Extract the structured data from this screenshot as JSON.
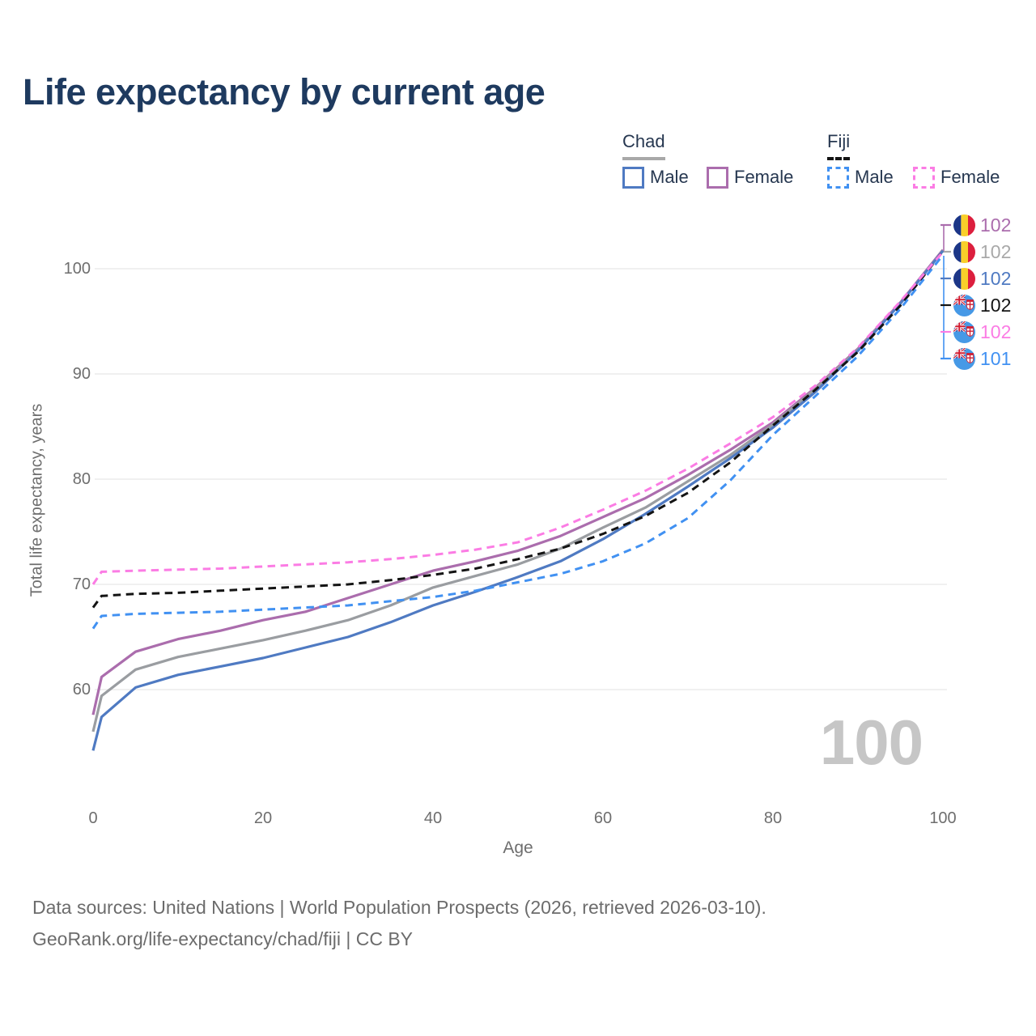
{
  "title": "Life expectancy by current age",
  "watermark": "100",
  "legend": {
    "chad": {
      "name": "Chad",
      "male": "Male",
      "female": "Female"
    },
    "fiji": {
      "name": "Fiji",
      "male": "Male",
      "female": "Female"
    }
  },
  "colors": {
    "chad_male": "#4f7ac2",
    "chad_female": "#ab6dad",
    "chad_all": "#9a9da1",
    "fiji_male": "#4191f2",
    "fiji_female": "#fb7ce4",
    "fiji_all": "#141414",
    "title_text": "#1e3a5f",
    "axis_text": "#6e6e6e",
    "gridline": "#e8e8e8",
    "watermark": "#c6c6c6"
  },
  "chart_data": {
    "type": "line",
    "title": "Life expectancy by current age",
    "xlabel": "Age",
    "ylabel": "Total life expectancy, years",
    "xlim": [
      0,
      100
    ],
    "ylim": [
      53,
      103
    ],
    "x_ticks": [
      0,
      20,
      40,
      60,
      80,
      100
    ],
    "y_ticks": [
      100,
      90,
      80,
      70,
      60
    ],
    "grid": "horizontal-only",
    "legend_position": "top-right",
    "x": [
      0,
      1,
      5,
      10,
      15,
      20,
      25,
      30,
      35,
      40,
      45,
      50,
      55,
      60,
      65,
      70,
      75,
      80,
      85,
      90,
      95,
      100
    ],
    "series": [
      {
        "name": "Chad Female",
        "country": "Chad",
        "sex": "Female",
        "line_style": "solid",
        "color": "#ab6dad",
        "values": [
          57.6,
          61.2,
          63.6,
          64.8,
          65.6,
          66.6,
          67.4,
          68.7,
          70.0,
          71.3,
          72.2,
          73.2,
          74.6,
          76.4,
          78.2,
          80.4,
          82.8,
          85.4,
          88.7,
          92.4,
          96.8,
          101.8
        ],
        "end_label": "102"
      },
      {
        "name": "Chad All",
        "country": "Chad",
        "sex": "Both",
        "line_style": "solid",
        "color": "#9a9da1",
        "values": [
          56.0,
          59.4,
          61.9,
          63.1,
          63.9,
          64.7,
          65.6,
          66.6,
          68.0,
          69.7,
          70.8,
          71.9,
          73.4,
          75.4,
          77.3,
          79.8,
          82.3,
          85.2,
          88.6,
          92.3,
          96.7,
          101.75
        ],
        "end_label": "102"
      },
      {
        "name": "Chad Male",
        "country": "Chad",
        "sex": "Male",
        "line_style": "solid",
        "color": "#4f7ac2",
        "values": [
          54.2,
          57.4,
          60.2,
          61.4,
          62.2,
          63.0,
          64.0,
          65.0,
          66.4,
          68.0,
          69.3,
          70.7,
          72.2,
          74.3,
          76.7,
          79.3,
          82.0,
          84.9,
          88.3,
          92.2,
          96.7,
          101.7
        ],
        "end_label": "102"
      },
      {
        "name": "Fiji All",
        "country": "Fiji",
        "sex": "Both",
        "line_style": "dashed",
        "color": "#141414",
        "values": [
          67.8,
          68.9,
          69.1,
          69.2,
          69.4,
          69.6,
          69.8,
          70.0,
          70.4,
          70.9,
          71.5,
          72.4,
          73.4,
          74.8,
          76.5,
          78.7,
          81.6,
          85.1,
          88.5,
          92.1,
          96.5,
          101.65
        ],
        "end_label": "102"
      },
      {
        "name": "Fiji Female",
        "country": "Fiji",
        "sex": "Female",
        "line_style": "dashed",
        "color": "#fb7ce4",
        "values": [
          70.0,
          71.2,
          71.3,
          71.4,
          71.5,
          71.7,
          71.9,
          72.1,
          72.4,
          72.8,
          73.3,
          74.0,
          75.4,
          77.1,
          78.9,
          81.0,
          83.4,
          85.9,
          88.9,
          92.5,
          96.9,
          101.6
        ],
        "end_label": "102"
      },
      {
        "name": "Fiji Male",
        "country": "Fiji",
        "sex": "Male",
        "line_style": "dashed",
        "color": "#4191f2",
        "values": [
          65.8,
          67.0,
          67.2,
          67.3,
          67.4,
          67.6,
          67.8,
          68.0,
          68.4,
          68.8,
          69.4,
          70.2,
          71.0,
          72.2,
          73.9,
          76.3,
          79.9,
          84.2,
          87.9,
          91.7,
          96.2,
          101.3
        ],
        "end_label": "101"
      }
    ]
  },
  "end_labels": [
    {
      "flag": "chad",
      "value": "102",
      "color": "#ab6dad",
      "series": "Chad Female"
    },
    {
      "flag": "chad",
      "value": "102",
      "color": "#a9a9a9",
      "series": "Chad All"
    },
    {
      "flag": "chad",
      "value": "102",
      "color": "#4f7ac2",
      "series": "Chad Male"
    },
    {
      "flag": "fiji",
      "value": "102",
      "color": "#141414",
      "series": "Fiji All"
    },
    {
      "flag": "fiji",
      "value": "102",
      "color": "#fb7ce4",
      "series": "Fiji Female"
    },
    {
      "flag": "fiji",
      "value": "101",
      "color": "#4191f2",
      "series": "Fiji Male"
    }
  ],
  "footer": {
    "line1": "Data sources: United Nations | World Population Prospects (2026, retrieved 2026-03-10).",
    "line2": "GeoRank.org/life-expectancy/chad/fiji | CC BY"
  }
}
